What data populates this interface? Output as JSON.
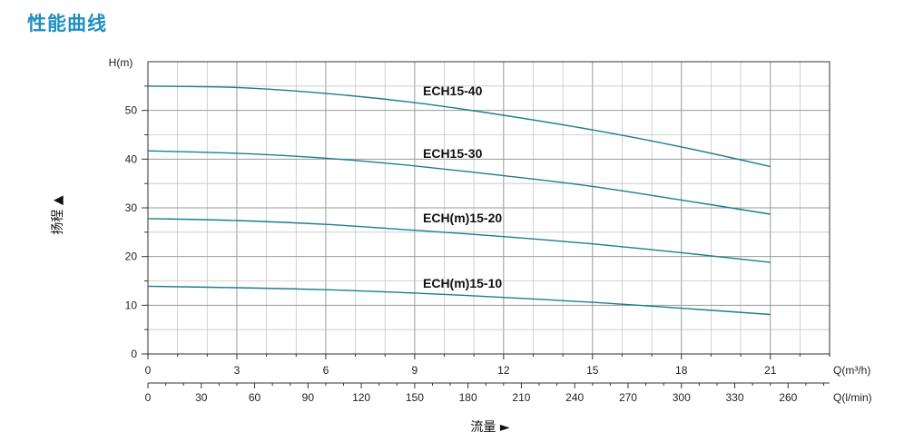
{
  "title": "性能曲线",
  "chart_data": {
    "type": "line",
    "ylabel": "扬程 ▲",
    "xlabel": "流量 ►",
    "y_unit": "H(m)",
    "x_unit_primary": "Q(m³/h)",
    "x_unit_secondary": "Q(l/min)",
    "ylim": [
      0,
      60
    ],
    "xlim": [
      0,
      23
    ],
    "y_ticks": [
      "0",
      "10",
      "20",
      "30",
      "40",
      "50"
    ],
    "x_ticks_primary": [
      "0",
      "3",
      "6",
      "9",
      "12",
      "15",
      "18",
      "21"
    ],
    "x_ticks_secondary": [
      "0",
      "30",
      "60",
      "90",
      "120",
      "150",
      "180",
      "210",
      "240",
      "270",
      "300",
      "330",
      "260"
    ],
    "grid": true,
    "line_color": "#1a7f8c",
    "series": [
      {
        "name": "ECH15-40",
        "x": [
          0,
          3,
          6,
          9,
          12,
          15,
          18,
          21
        ],
        "values": [
          55.0,
          54.7,
          53.5,
          51.6,
          49.0,
          46.0,
          42.5,
          38.5
        ]
      },
      {
        "name": "ECH15-30",
        "x": [
          0,
          3,
          6,
          9,
          12,
          15,
          18,
          21
        ],
        "values": [
          41.7,
          41.2,
          40.2,
          38.6,
          36.6,
          34.4,
          31.6,
          28.7
        ]
      },
      {
        "name": "ECH(m)15-20",
        "x": [
          0,
          3,
          6,
          9,
          12,
          15,
          18,
          21
        ],
        "values": [
          27.8,
          27.4,
          26.6,
          25.4,
          24.1,
          22.6,
          20.8,
          18.8
        ]
      },
      {
        "name": "ECH(m)15-10",
        "x": [
          0,
          3,
          6,
          9,
          12,
          15,
          18,
          21
        ],
        "values": [
          13.9,
          13.6,
          13.2,
          12.5,
          11.6,
          10.6,
          9.4,
          8.1
        ]
      }
    ]
  }
}
